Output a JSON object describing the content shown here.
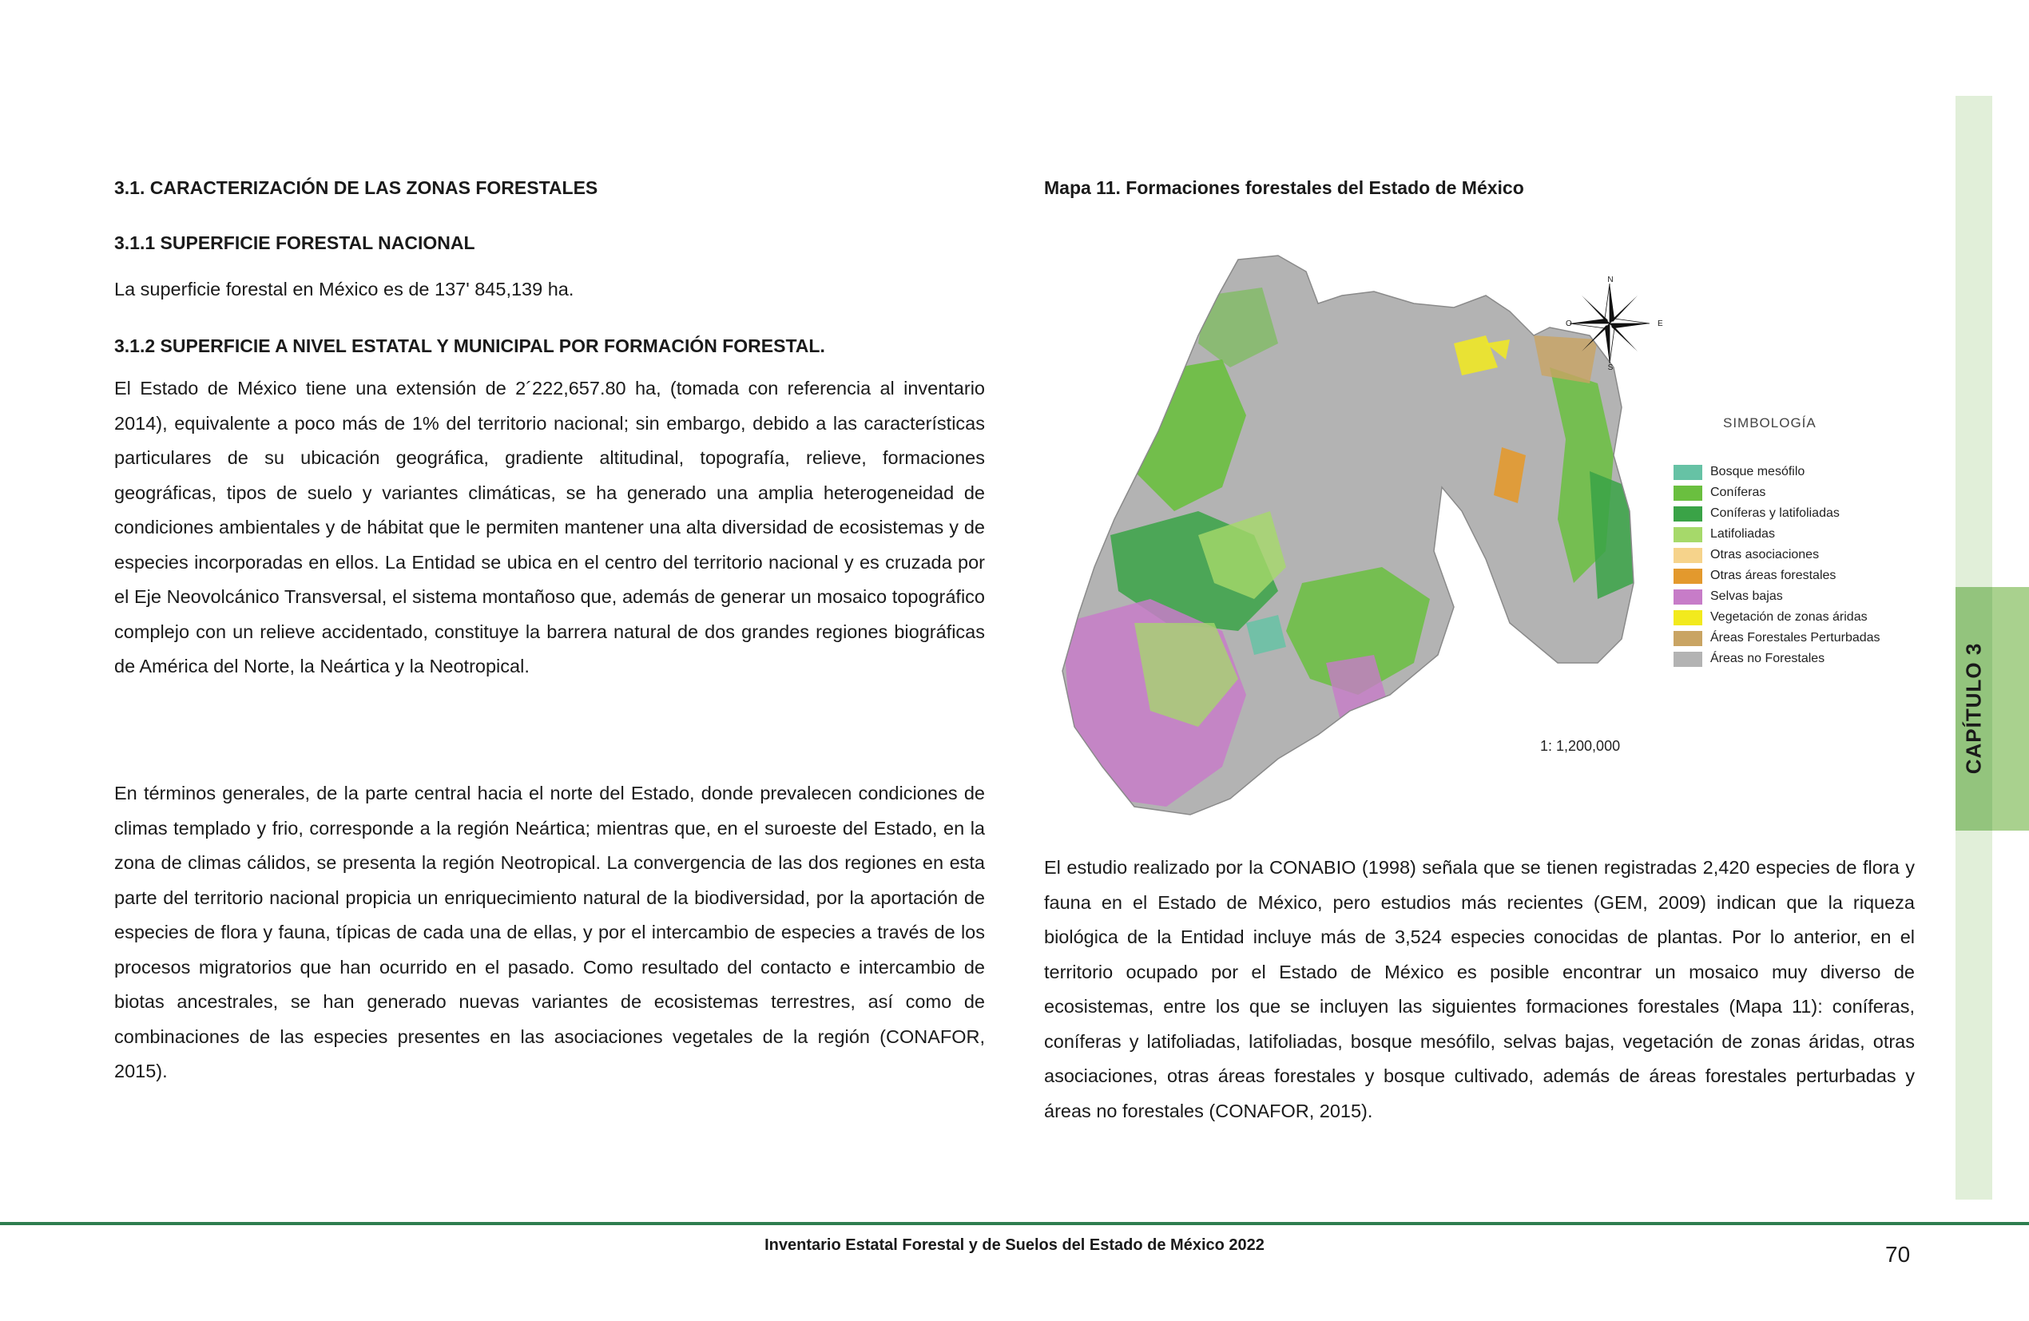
{
  "left": {
    "h1": "3.1. CARACTERIZACIÓN DE LAS ZONAS FORESTALES",
    "h2": "3.1.1 SUPERFICIE FORESTAL NACIONAL",
    "p1": "La superficie forestal en México es de 137' 845,139 ha.",
    "h3": "3.1.2 SUPERFICIE A NIVEL ESTATAL Y MUNICIPAL POR FORMACIÓN FORESTAL.",
    "p2": "El Estado de México tiene una extensión de 2´222,657.80 ha, (tomada con referencia al inventario 2014), equivalente a poco más de 1% del territorio nacional; sin embargo, debido a las características particulares de su ubicación geográfica, gradiente altitudinal, topografía, relieve, formaciones geográficas, tipos de suelo y variantes climáticas, se ha generado una amplia heterogeneidad de condiciones ambientales y de hábitat que le permiten mantener una alta diversidad de ecosistemas y de especies incorporadas en ellos. La Entidad se ubica en el centro del territorio nacional y es cruzada por el Eje Neovolcánico Transversal, el sistema montañoso que, además de generar un mosaico topográfico complejo con un relieve accidentado, constituye la barrera natural de dos grandes regiones biográficas de América del Norte, la Neártica y la Neotropical.",
    "p3": "En términos generales, de la parte central hacia el norte del Estado, donde prevalecen condiciones de climas templado y frio, corresponde a la región Neártica; mientras que, en el suroeste del Estado, en la zona de climas cálidos, se presenta la región Neotropical. La convergencia de las dos regiones en esta parte del territorio nacional propicia un enriquecimiento natural de la biodiversidad, por la aportación de especies de flora y fauna, típicas de cada una de ellas, y por el intercambio de especies a través de los procesos migratorios que han ocurrido en el pasado. Como resultado del contacto e intercambio de biotas ancestrales, se han generado nuevas variantes de ecosistemas terrestres, así como de combinaciones de las especies presentes en las asociaciones vegetales de la región (CONAFOR, 2015)."
  },
  "right": {
    "map_title": "Mapa 11. Formaciones forestales del Estado de México",
    "p4": "El estudio realizado por la CONABIO (1998) señala que se tienen registradas 2,420 especies de flora y fauna en el Estado de México, pero estudios más recientes (GEM, 2009) indican que la riqueza biológica de la Entidad incluye más de 3,524 especies conocidas de plantas. Por lo anterior, en el territorio ocupado por el Estado de México es posible encontrar un mosaico muy diverso de ecosistemas, entre los que se incluyen las siguientes formaciones forestales (Mapa 11): coníferas, coníferas y latifoliadas, latifoliadas, bosque mesófilo, selvas bajas, vegetación de zonas áridas, otras asociaciones, otras áreas forestales y bosque cultivado, además de áreas forestales perturbadas y áreas no forestales (CONAFOR, 2015)."
  },
  "map": {
    "legend_title": "SIMBOLOGÍA",
    "legend": [
      {
        "label": "Bosque mesófilo",
        "color": "#66c2a5"
      },
      {
        "label": "Coníferas",
        "color": "#6abf3f"
      },
      {
        "label": "Coníferas y latifoliadas",
        "color": "#3aa347"
      },
      {
        "label": "Latifoliadas",
        "color": "#a6d96a"
      },
      {
        "label": "Otras asociaciones",
        "color": "#f6d38b"
      },
      {
        "label": "Otras áreas forestales",
        "color": "#e3992d"
      },
      {
        "label": "Selvas bajas",
        "color": "#c77cc8"
      },
      {
        "label": "Vegetación de zonas áridas",
        "color": "#f2ea1d"
      },
      {
        "label": "Áreas Forestales Perturbadas",
        "color": "#c9a463"
      },
      {
        "label": "Áreas no Forestales",
        "color": "#b3b3b3"
      }
    ],
    "scale": "1: 1,200,000",
    "compass": {
      "n": "N",
      "s": "S",
      "e": "E",
      "w": "O"
    }
  },
  "side_tab": "CAPÍTULO 3",
  "footer": "Inventario Estatal Forestal y de Suelos del Estado de México 2022",
  "page_number": "70"
}
